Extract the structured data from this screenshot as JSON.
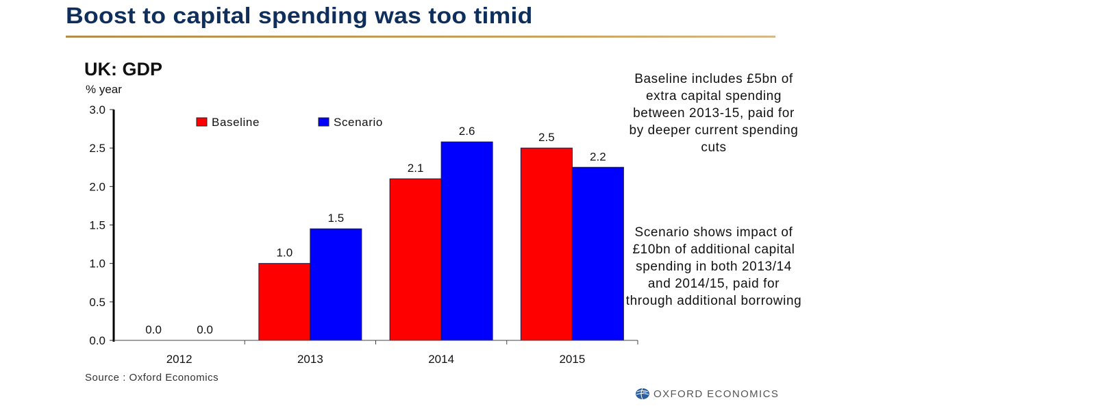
{
  "slide": {
    "title": "Boost to capital spending was too timid"
  },
  "chart": {
    "title": "UK: GDP",
    "unit_label": "% year",
    "source": "Source : Oxford Economics"
  },
  "notes": [
    "Baseline includes £5bn of extra capital spending between 2013-15, paid for by deeper current spending cuts",
    "Scenario shows impact of £10bn of additional capital spending in both 2013/14 and 2014/15, paid for through additional borrowing"
  ],
  "brand": {
    "name": "OXFORD ECONOMICS",
    "icon": "globe-icon"
  },
  "colors": {
    "baseline": "#ff0000",
    "scenario": "#0000ff",
    "title": "#0e2f5c",
    "rule": "#c9a45e"
  },
  "chart_data": {
    "type": "bar",
    "title": "UK: GDP",
    "xlabel": "",
    "ylabel": "% year",
    "categories": [
      "2012",
      "2013",
      "2014",
      "2015"
    ],
    "series": [
      {
        "name": "Baseline",
        "color": "#ff0000",
        "values": [
          0.0,
          1.0,
          2.1,
          2.5
        ]
      },
      {
        "name": "Scenario",
        "color": "#0000ff",
        "values": [
          0.0,
          1.45,
          2.58,
          2.25
        ]
      }
    ],
    "data_labels": [
      [
        "0.0",
        "1.0",
        "2.1",
        "2.5"
      ],
      [
        "0.0",
        "1.5",
        "2.6",
        "2.2"
      ]
    ],
    "ylim": [
      0,
      3.0
    ],
    "yticks": [
      "0.0",
      "0.5",
      "1.0",
      "1.5",
      "2.0",
      "2.5",
      "3.0"
    ],
    "ytick_values": [
      0,
      0.5,
      1.0,
      1.5,
      2.0,
      2.5,
      3.0
    ],
    "grid": false,
    "legend": {
      "position": "top-left",
      "entries": [
        "Baseline",
        "Scenario"
      ]
    }
  }
}
